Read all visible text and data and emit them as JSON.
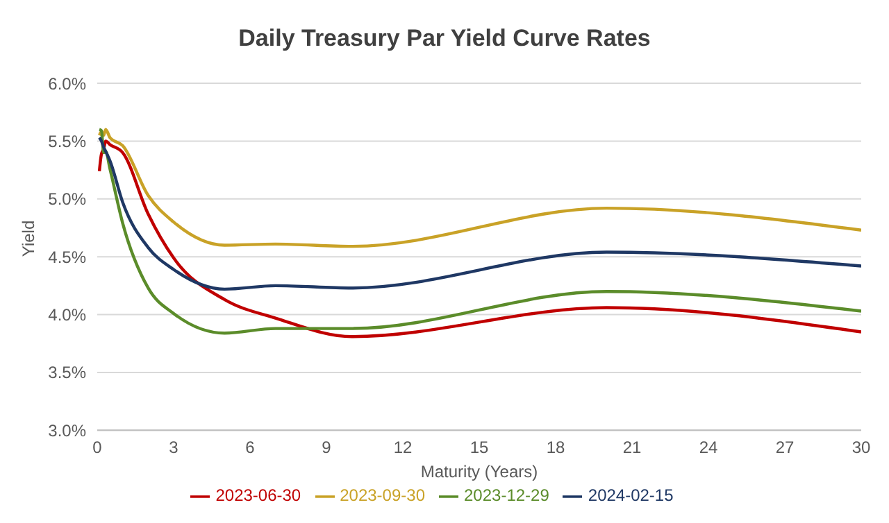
{
  "chart_data": {
    "type": "line",
    "title": "Daily Treasury Par Yield Curve Rates",
    "xlabel": "Maturity (Years)",
    "ylabel": "Yield",
    "x": [
      0.0833,
      0.1667,
      0.25,
      0.3333,
      0.5,
      1,
      2,
      3,
      5,
      7,
      10,
      20,
      30
    ],
    "series": [
      {
        "name": "2023-06-30",
        "color": "#c00000",
        "values": [
          5.24,
          5.39,
          5.43,
          5.5,
          5.47,
          5.4,
          4.87,
          4.49,
          4.13,
          3.97,
          3.81,
          4.06,
          3.85
        ]
      },
      {
        "name": "2023-09-30",
        "color": "#c9a227",
        "values": [
          5.55,
          5.58,
          5.55,
          5.6,
          5.53,
          5.46,
          5.03,
          4.8,
          4.6,
          4.61,
          4.59,
          4.92,
          4.73
        ]
      },
      {
        "name": "2023-12-29",
        "color": "#5b8c2a",
        "values": [
          5.6,
          5.59,
          5.4,
          5.41,
          5.26,
          4.79,
          4.23,
          4.01,
          3.84,
          3.88,
          3.88,
          4.2,
          4.03
        ]
      },
      {
        "name": "2024-02-15",
        "color": "#1f3864",
        "values": [
          5.53,
          5.5,
          5.45,
          5.41,
          5.33,
          4.97,
          4.58,
          4.39,
          4.22,
          4.25,
          4.23,
          4.54,
          4.42
        ]
      }
    ],
    "xlim": [
      0,
      30
    ],
    "xticks": [
      0,
      3,
      6,
      9,
      12,
      15,
      18,
      21,
      24,
      27,
      30
    ],
    "ylim": [
      3,
      6
    ],
    "yticks": [
      {
        "value": 3,
        "label": "3.0%"
      },
      {
        "value": 3.5,
        "label": "3.5%"
      },
      {
        "value": 4,
        "label": "4.0%"
      },
      {
        "value": 4.5,
        "label": "4.5%"
      },
      {
        "value": 5,
        "label": "5.0%"
      },
      {
        "value": 5.5,
        "label": "5.5%"
      },
      {
        "value": 6,
        "label": "6.0%"
      }
    ],
    "grid": "y",
    "legend": "bottom",
    "marker": "none",
    "line_style": "solid"
  }
}
